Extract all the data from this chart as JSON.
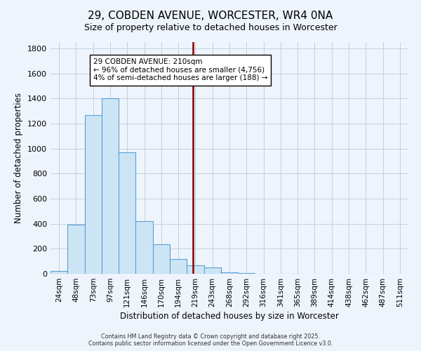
{
  "title": "29, COBDEN AVENUE, WORCESTER, WR4 0NA",
  "subtitle": "Size of property relative to detached houses in Worcester",
  "xlabel": "Distribution of detached houses by size in Worcester",
  "ylabel": "Number of detached properties",
  "bin_labels": [
    "24sqm",
    "48sqm",
    "73sqm",
    "97sqm",
    "121sqm",
    "146sqm",
    "170sqm",
    "194sqm",
    "219sqm",
    "243sqm",
    "268sqm",
    "292sqm",
    "316sqm",
    "341sqm",
    "365sqm",
    "389sqm",
    "414sqm",
    "438sqm",
    "462sqm",
    "487sqm",
    "511sqm"
  ],
  "bar_heights": [
    25,
    390,
    1265,
    1400,
    970,
    420,
    235,
    115,
    70,
    50,
    10,
    5,
    2,
    1,
    0,
    0,
    0,
    0,
    0,
    0,
    0
  ],
  "bar_color": "#cce5f5",
  "bar_edge_color": "#5a9fd4",
  "vline_color": "#8b0000",
  "vline_x_index": 7.85,
  "annotation_title": "29 COBDEN AVENUE: 210sqm",
  "annotation_line1": "← 96% of detached houses are smaller (4,756)",
  "annotation_line2": "4% of semi-detached houses are larger (188) →",
  "ylim": [
    0,
    1850
  ],
  "yticks": [
    0,
    200,
    400,
    600,
    800,
    1000,
    1200,
    1400,
    1600,
    1800
  ],
  "footer_line1": "Contains HM Land Registry data © Crown copyright and database right 2025.",
  "footer_line2": "Contains public sector information licensed under the Open Government Licence v3.0.",
  "background_color": "#eef4fb",
  "grid_color": "#c0d0e0",
  "title_fontsize": 11,
  "subtitle_fontsize": 9
}
